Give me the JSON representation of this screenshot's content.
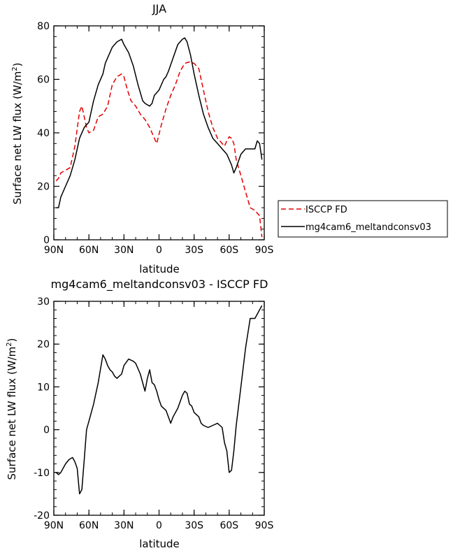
{
  "chart_data": [
    {
      "type": "line",
      "title": "JJA",
      "xlabel": "latitude",
      "ylabel": "Surface net LW flux (W/m²)",
      "xlim": [
        90,
        -90
      ],
      "ylim": [
        0,
        80
      ],
      "x_ticks": [
        90,
        60,
        30,
        0,
        -30,
        -60,
        -90
      ],
      "x_tick_labels": [
        "90N",
        "60N",
        "30N",
        "0",
        "30S",
        "60S",
        "90S"
      ],
      "y_ticks": [
        0,
        20,
        40,
        60,
        80
      ],
      "y_tick_labels": [
        "0",
        "20",
        "40",
        "60",
        "80"
      ],
      "legend_position": "right",
      "series": [
        {
          "name": "ISCCP FD",
          "color": "#e00000",
          "dash": "dashed",
          "x": [
            88,
            86,
            84,
            80,
            76,
            72,
            68,
            66,
            64,
            62,
            60,
            56,
            52,
            48,
            44,
            40,
            36,
            32,
            30,
            27,
            24,
            20,
            16,
            12,
            8,
            4,
            2,
            -2,
            -6,
            -10,
            -14,
            -18,
            -22,
            -26,
            -30,
            -34,
            -38,
            -42,
            -46,
            -50,
            -54,
            -56,
            -58,
            -60,
            -62,
            -64,
            -66,
            -70,
            -74,
            -78,
            -82,
            -86,
            -88
          ],
          "y": [
            22,
            23,
            25,
            26,
            27,
            35,
            48,
            50,
            46,
            42,
            40,
            41,
            46,
            47,
            50,
            58,
            61,
            62,
            61,
            56,
            52,
            50,
            47,
            45,
            42,
            38,
            36,
            43,
            49,
            54,
            58,
            63,
            66,
            66.5,
            66,
            64,
            56,
            48,
            42,
            38,
            36,
            35,
            37,
            38.5,
            38,
            36,
            30,
            24,
            18,
            12,
            11,
            9,
            1
          ]
        },
        {
          "name": "mg4cam6_meltandconsv03",
          "color": "#000000",
          "dash": "solid",
          "x": [
            88,
            86,
            84,
            82,
            80,
            76,
            72,
            68,
            64,
            62,
            60,
            58,
            56,
            52,
            48,
            46,
            44,
            40,
            36,
            32,
            30,
            26,
            22,
            18,
            14,
            12,
            8,
            6,
            4,
            2,
            0,
            -4,
            -6,
            -8,
            -12,
            -16,
            -20,
            -22,
            -24,
            -27,
            -30,
            -34,
            -38,
            -42,
            -46,
            -50,
            -54,
            -58,
            -62,
            -64,
            -66,
            -70,
            -74,
            -78,
            -82,
            -84,
            -86,
            -88
          ],
          "y": [
            12,
            12,
            16,
            18,
            20,
            24,
            30,
            38,
            42,
            43,
            44,
            48,
            52,
            58,
            62,
            66,
            68,
            72,
            74,
            75,
            73,
            70,
            65,
            58,
            52,
            51,
            50,
            51,
            54,
            55,
            56,
            60,
            61,
            63,
            68,
            73,
            75,
            75.5,
            74,
            69,
            62,
            54,
            47,
            42,
            38,
            36,
            34,
            32,
            28,
            25,
            27,
            32,
            34,
            34,
            34,
            37,
            36,
            30
          ]
        }
      ]
    },
    {
      "type": "line",
      "title": "mg4cam6_meltandconsv03 - ISCCP FD",
      "xlabel": "latitude",
      "ylabel": "Surface net LW flux (W/m²)",
      "xlim": [
        90,
        -90
      ],
      "ylim": [
        -20,
        30
      ],
      "x_ticks": [
        90,
        60,
        30,
        0,
        -30,
        -60,
        -90
      ],
      "x_tick_labels": [
        "90N",
        "60N",
        "30N",
        "0",
        "30S",
        "60S",
        "90S"
      ],
      "y_ticks": [
        -20,
        -10,
        0,
        10,
        20,
        30
      ],
      "y_tick_labels": [
        "-20",
        "-10",
        "0",
        "10",
        "20",
        "30"
      ],
      "series": [
        {
          "color": "#000000",
          "dash": "solid",
          "x": [
            88,
            86,
            84,
            80,
            77,
            74,
            72,
            70,
            68,
            66,
            64,
            62,
            60,
            56,
            52,
            48,
            46,
            44,
            42,
            40,
            38,
            36,
            34,
            32,
            30,
            26,
            22,
            20,
            16,
            12,
            10,
            8,
            6,
            4,
            2,
            0,
            -2,
            -6,
            -10,
            -12,
            -16,
            -20,
            -22,
            -24,
            -26,
            -28,
            -30,
            -34,
            -36,
            -38,
            -42,
            -46,
            -50,
            -52,
            -54,
            -56,
            -58,
            -60,
            -62,
            -64,
            -66,
            -70,
            -74,
            -78,
            -82,
            -84,
            -86,
            -88
          ],
          "y": [
            -10,
            -10.5,
            -10,
            -8,
            -7,
            -6.5,
            -7.5,
            -9,
            -15,
            -14,
            -7,
            0,
            2,
            6,
            11,
            17.5,
            16.5,
            15,
            14,
            13.5,
            12.5,
            12,
            12.5,
            13,
            15,
            16.5,
            16,
            15.5,
            13,
            9,
            12,
            14,
            11,
            10.5,
            9,
            7,
            5.5,
            4.5,
            1.5,
            3,
            5,
            8,
            9,
            8.5,
            6,
            5.5,
            4,
            3,
            1.5,
            1,
            0.5,
            1,
            1.5,
            1,
            0.5,
            -3,
            -5,
            -10,
            -9.5,
            -5,
            1,
            10,
            19,
            26,
            26,
            27,
            28,
            29
          ]
        }
      ]
    }
  ]
}
